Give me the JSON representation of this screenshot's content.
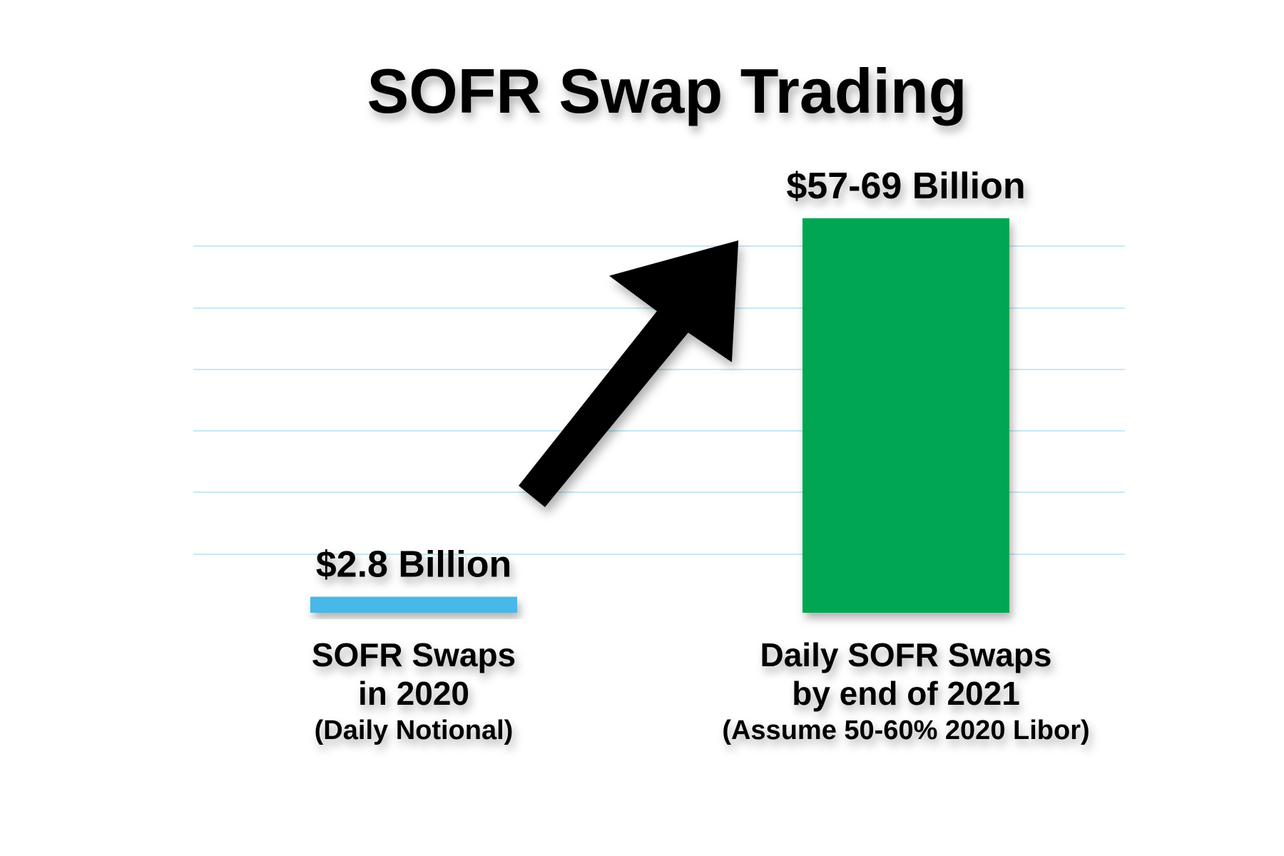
{
  "chart_data": {
    "type": "bar",
    "title": "SOFR Swap Trading",
    "categories": [
      [
        "SOFR Swaps",
        "in 2020"
      ],
      [
        "Daily SOFR Swaps",
        "by end of 2021"
      ]
    ],
    "category_notes": [
      "(Daily Notional)",
      "(Assume 50-60% 2020 Libor)"
    ],
    "values": [
      2.8,
      57
    ],
    "upper": [
      null,
      69
    ],
    "value_labels": [
      "$2.8 Billion",
      "$57-69 Billion"
    ],
    "colors": [
      "#47b8e8",
      "#00a651"
    ]
  }
}
